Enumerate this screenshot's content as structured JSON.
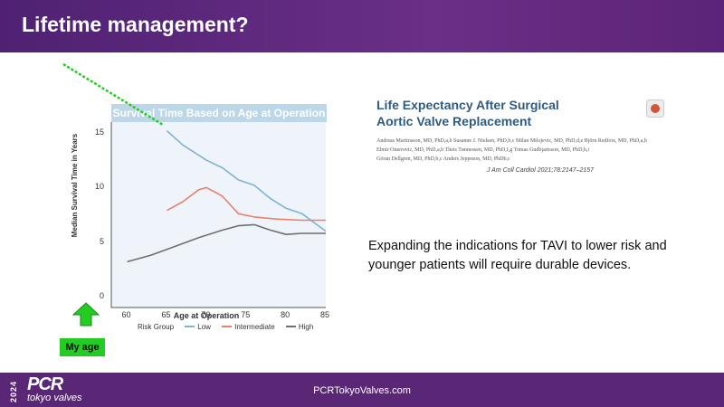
{
  "header": {
    "title": "Lifetime management?"
  },
  "chart_data": {
    "type": "line",
    "title": "Survival Time Based on Age at Operation",
    "xlabel": "Age at Operation",
    "ylabel": "Median Survival Time in Years",
    "xlim": [
      58,
      85
    ],
    "ylim": [
      -1,
      16
    ],
    "x_ticks": [
      "60",
      "65",
      "70",
      "75",
      "80",
      "85"
    ],
    "y_ticks": [
      "0",
      "5",
      "10",
      "15"
    ],
    "legend_title": "Risk Group",
    "series": [
      {
        "name": "Low",
        "color": "#7fb3d5",
        "x": [
          65,
          67,
          70,
          72,
          74,
          76,
          78,
          80,
          82,
          85
        ],
        "y": [
          15.2,
          13.9,
          12.5,
          11.8,
          10.7,
          10.2,
          9.0,
          8.1,
          7.6,
          6.0
        ]
      },
      {
        "name": "Intermediate",
        "color": "#e8826c",
        "x": [
          65,
          67,
          69,
          70,
          72,
          74,
          76,
          79,
          82,
          85
        ],
        "y": [
          7.9,
          8.7,
          9.8,
          10.0,
          9.2,
          7.6,
          7.3,
          7.1,
          7.0,
          7.0
        ]
      },
      {
        "name": "High",
        "color": "#6f6f6f",
        "x": [
          60,
          63,
          66,
          69,
          72,
          74,
          76,
          78,
          80,
          82,
          85
        ],
        "y": [
          3.2,
          3.8,
          4.6,
          5.4,
          6.1,
          6.5,
          6.6,
          6.1,
          5.7,
          5.8,
          5.8
        ]
      }
    ]
  },
  "annotation": {
    "label": "My age",
    "arrow_color": "#22cc22",
    "line_color": "#22cc22"
  },
  "paper": {
    "title_line1": "Life Expectancy After Surgical",
    "title_line2": "Aortic Valve Replacement",
    "authors_line1": "Andreas Martinsson, MD, PhD,a,b Susanne J. Nielsen, PhD,b,c Milan Milojevic, MD, PhD,d,e Björn Redfors, MD, PhD,a,b",
    "authors_line2": "Elmir Omerovic, MD, PhD,a,b Theis Tønnessen, MD, PhD,f,g Tomas Gudbjartsson, MD, PhD,h,i",
    "authors_line3": "Göran Dellgren, MD, PhD,b,c Anders Jeppsson, MD, PhDb,c",
    "citation": "J Am Coll Cardiol 2021;78:2147–2157"
  },
  "body_text": "Expanding the indications for TAVI to lower risk and younger patients will require durable devices.",
  "footer": {
    "year": "2024",
    "brand": "PCR",
    "sub": "tokyo valves",
    "site": "PCRTokyoValves.com"
  }
}
